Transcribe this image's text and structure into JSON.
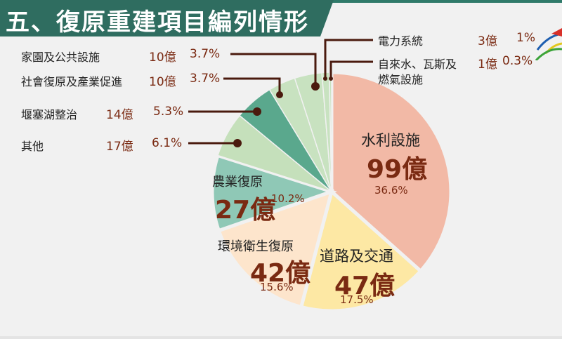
{
  "header": {
    "title": "五、復原重建項目編列情形"
  },
  "chart_data": {
    "type": "pie",
    "title": "五、復原重建項目編列情形",
    "unit": "億",
    "start_angle": "12 o'clock, clockwise",
    "categories": [
      "水利設施",
      "道路及交通",
      "環境衛生復原",
      "農業復原",
      "其他",
      "堰塞湖整治",
      "社會復原及產業促進",
      "家園及公共設施",
      "電力系統",
      "自來水、瓦斯及燃氣設施"
    ],
    "amounts": [
      99,
      47,
      42,
      27,
      17,
      14,
      10,
      10,
      3,
      1
    ],
    "percentages": [
      36.6,
      17.5,
      15.6,
      10.2,
      6.1,
      5.3,
      3.7,
      3.7,
      1,
      0.3
    ],
    "colors": [
      "#f2b9a6",
      "#fde8a4",
      "#fde5cc",
      "#8fc8b6",
      "#c5e0bb",
      "#5aa88d",
      "#c8e2c0",
      "#c8e2c0",
      "#c8e2c0",
      "#c8e2c0"
    ],
    "legend_position": "callouts"
  },
  "labels": {
    "water": {
      "name": "水利設施",
      "amount": "99億",
      "pct": "36.6%"
    },
    "road": {
      "name": "道路及交通",
      "amount": "47億",
      "pct": "17.5%"
    },
    "env": {
      "name": "環境衛生復原",
      "amount": "42億",
      "pct": "15.6%"
    },
    "agri": {
      "name": "農業復原",
      "amount": "27億",
      "pct": "10.2%"
    },
    "other": {
      "name": "其他",
      "amount": "17億",
      "pct": "6.1%"
    },
    "lake": {
      "name": "堰塞湖整治",
      "amount": "14億",
      "pct": "5.3%"
    },
    "social": {
      "name": "社會復原及產業促進",
      "amount": "10億",
      "pct": "3.7%"
    },
    "home": {
      "name": "家園及公共設施",
      "amount": "10億",
      "pct": "3.7%"
    },
    "power": {
      "name": "電力系統",
      "amount": "3億",
      "pct": "1%"
    },
    "gas": {
      "name_line1": "自來水、瓦斯及",
      "name_line2": "燃氣設施",
      "amount": "1億",
      "pct": "0.3%"
    }
  }
}
